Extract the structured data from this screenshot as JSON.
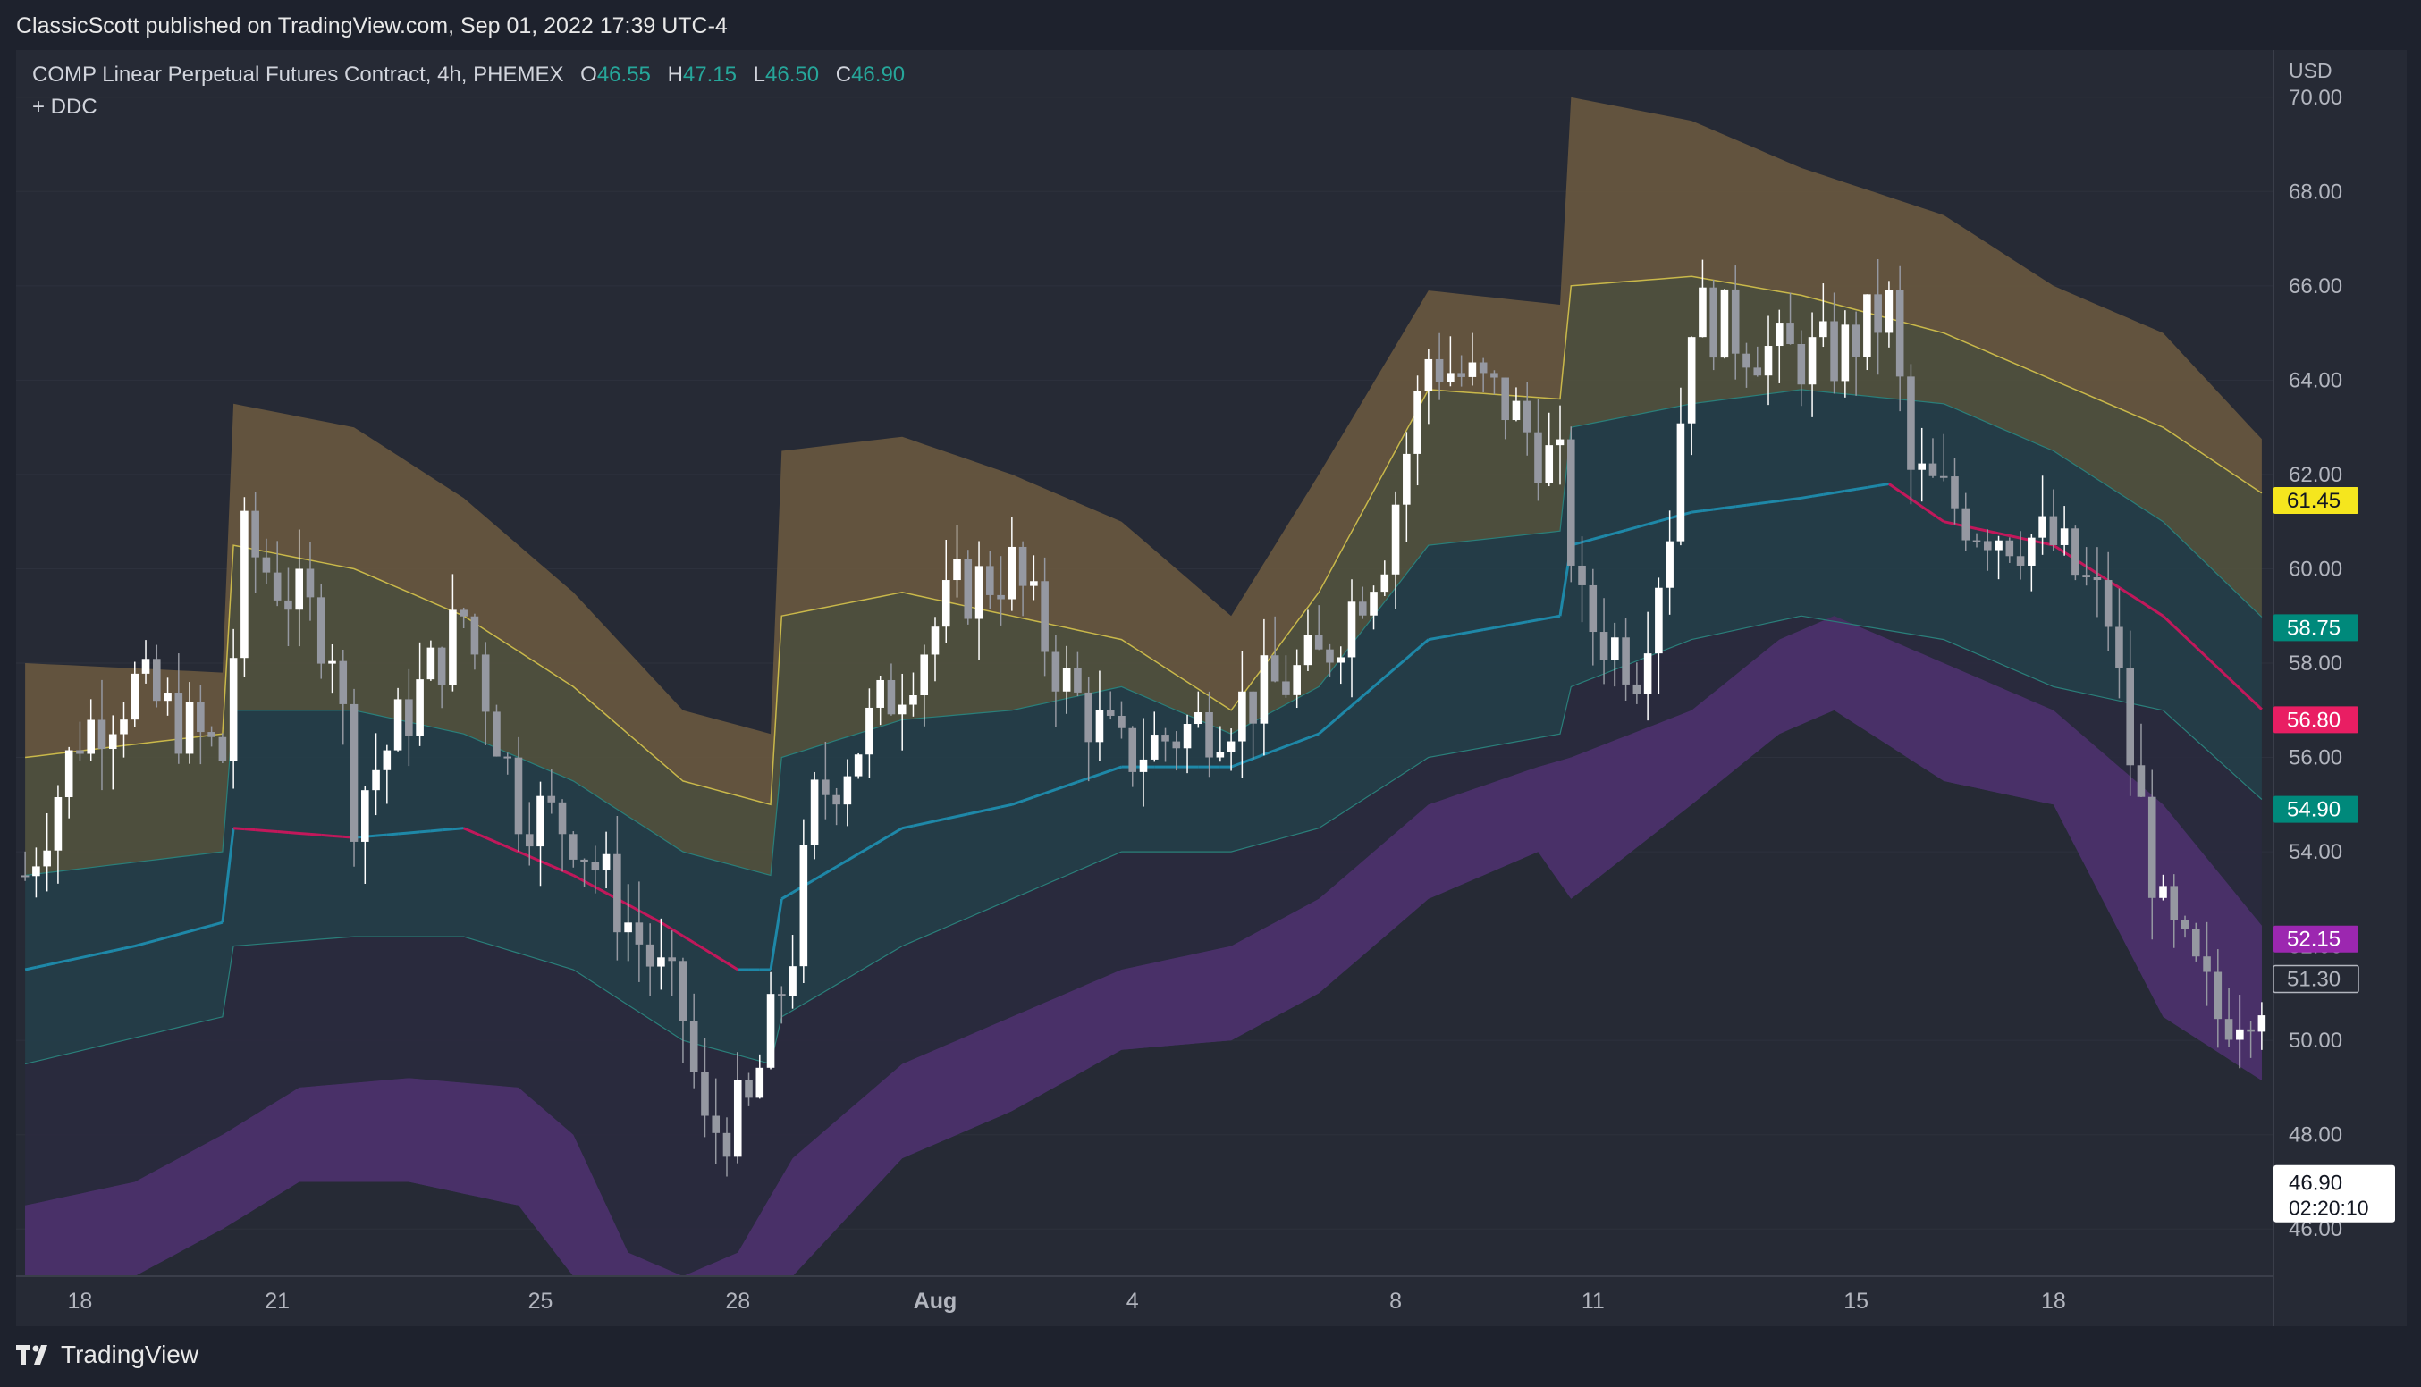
{
  "header": {
    "publisher": "ClassicScott published on TradingView.com, Sep 01, 2022 17:39 UTC-4"
  },
  "legend": {
    "symbol": "COMP Linear Perpetual Futures Contract, 4h, PHEMEX",
    "open_label": "O",
    "open": "46.55",
    "high_label": "H",
    "high": "47.15",
    "low_label": "L",
    "low": "46.50",
    "close_label": "C",
    "close": "46.90",
    "indicator": "+ DDC"
  },
  "footer": {
    "brand": "TradingView"
  },
  "chart_data": {
    "type": "candlestick",
    "currency": "USD",
    "ylim": [
      45.0,
      71.0
    ],
    "y_ticks": [
      "70.00",
      "68.00",
      "66.00",
      "64.00",
      "62.00",
      "60.00",
      "58.00",
      "56.00",
      "54.00",
      "52.00",
      "50.00",
      "48.00",
      "46.00"
    ],
    "x_ticks": [
      {
        "label": "18",
        "i": 5
      },
      {
        "label": "21",
        "i": 23
      },
      {
        "label": "25",
        "i": 47
      },
      {
        "label": "28",
        "i": 65
      },
      {
        "label": "Aug",
        "i": 83
      },
      {
        "label": "4",
        "i": 101
      },
      {
        "label": "8",
        "i": 125
      },
      {
        "label": "11",
        "i": 143
      },
      {
        "label": "15",
        "i": 167
      },
      {
        "label": "18",
        "i": 185
      }
    ],
    "n_bars": 205,
    "bands": {
      "upper_outer": [
        [
          0,
          58.0
        ],
        [
          18,
          57.8
        ],
        [
          19,
          63.5
        ],
        [
          30,
          63.0
        ],
        [
          40,
          61.5
        ],
        [
          50,
          59.5
        ],
        [
          60,
          57.0
        ],
        [
          68,
          56.5
        ],
        [
          69,
          62.5
        ],
        [
          80,
          62.8
        ],
        [
          90,
          62.0
        ],
        [
          100,
          61.0
        ],
        [
          110,
          59.0
        ],
        [
          118,
          62.0
        ],
        [
          128,
          65.9
        ],
        [
          140,
          65.6
        ],
        [
          141,
          70.0
        ],
        [
          152,
          69.5
        ],
        [
          162,
          68.5
        ],
        [
          175,
          67.5
        ],
        [
          185,
          66.0
        ],
        [
          195,
          65.0
        ],
        [
          205,
          62.5
        ]
      ],
      "upper_inner": [
        [
          0,
          56.0
        ],
        [
          18,
          56.5
        ],
        [
          19,
          60.5
        ],
        [
          30,
          60.0
        ],
        [
          40,
          59.0
        ],
        [
          50,
          57.5
        ],
        [
          60,
          55.5
        ],
        [
          68,
          55.0
        ],
        [
          69,
          59.0
        ],
        [
          80,
          59.5
        ],
        [
          90,
          59.0
        ],
        [
          100,
          58.5
        ],
        [
          110,
          57.0
        ],
        [
          118,
          59.5
        ],
        [
          128,
          63.8
        ],
        [
          140,
          63.6
        ],
        [
          141,
          66.0
        ],
        [
          152,
          66.2
        ],
        [
          162,
          65.8
        ],
        [
          175,
          65.0
        ],
        [
          185,
          64.0
        ],
        [
          195,
          63.0
        ],
        [
          205,
          61.45
        ]
      ],
      "mid_upper": [
        [
          0,
          53.5
        ],
        [
          18,
          54.0
        ],
        [
          19,
          57.0
        ],
        [
          30,
          57.0
        ],
        [
          40,
          56.5
        ],
        [
          50,
          55.5
        ],
        [
          60,
          54.0
        ],
        [
          68,
          53.5
        ],
        [
          69,
          56.0
        ],
        [
          80,
          56.8
        ],
        [
          90,
          57.0
        ],
        [
          100,
          57.5
        ],
        [
          110,
          56.5
        ],
        [
          118,
          57.5
        ],
        [
          128,
          60.5
        ],
        [
          140,
          60.8
        ],
        [
          141,
          63.0
        ],
        [
          152,
          63.5
        ],
        [
          162,
          63.8
        ],
        [
          175,
          63.5
        ],
        [
          185,
          62.5
        ],
        [
          195,
          61.0
        ],
        [
          205,
          58.75
        ]
      ],
      "mid": [
        [
          0,
          51.5
        ],
        [
          10,
          52.0
        ],
        [
          18,
          52.5
        ],
        [
          19,
          54.5
        ],
        [
          30,
          54.3
        ],
        [
          40,
          54.5
        ],
        [
          50,
          53.5
        ],
        [
          58,
          52.5
        ],
        [
          65,
          51.5
        ],
        [
          68,
          51.5
        ],
        [
          69,
          53.0
        ],
        [
          80,
          54.5
        ],
        [
          90,
          55.0
        ],
        [
          100,
          55.8
        ],
        [
          110,
          55.8
        ],
        [
          118,
          56.5
        ],
        [
          128,
          58.5
        ],
        [
          140,
          59.0
        ],
        [
          141,
          60.5
        ],
        [
          152,
          61.2
        ],
        [
          162,
          61.5
        ],
        [
          170,
          61.8
        ],
        [
          175,
          61.0
        ],
        [
          185,
          60.5
        ],
        [
          195,
          59.0
        ],
        [
          205,
          56.8
        ]
      ],
      "mid_lower": [
        [
          0,
          49.5
        ],
        [
          18,
          50.5
        ],
        [
          19,
          52.0
        ],
        [
          30,
          52.2
        ],
        [
          40,
          52.2
        ],
        [
          50,
          51.5
        ],
        [
          60,
          50.0
        ],
        [
          68,
          49.5
        ],
        [
          69,
          50.5
        ],
        [
          80,
          52.0
        ],
        [
          90,
          53.0
        ],
        [
          100,
          54.0
        ],
        [
          110,
          54.0
        ],
        [
          118,
          54.5
        ],
        [
          128,
          56.0
        ],
        [
          140,
          56.5
        ],
        [
          141,
          57.5
        ],
        [
          152,
          58.5
        ],
        [
          162,
          59.0
        ],
        [
          175,
          58.5
        ],
        [
          185,
          57.5
        ],
        [
          195,
          57.0
        ],
        [
          205,
          54.9
        ]
      ],
      "lower_inner": [
        [
          0,
          46.5
        ],
        [
          10,
          47.0
        ],
        [
          18,
          48.0
        ],
        [
          25,
          49.0
        ],
        [
          35,
          49.2
        ],
        [
          45,
          49.0
        ],
        [
          50,
          48.0
        ],
        [
          55,
          45.5
        ],
        [
          60,
          45.0
        ],
        [
          65,
          45.5
        ],
        [
          70,
          47.5
        ],
        [
          80,
          49.5
        ],
        [
          90,
          50.5
        ],
        [
          100,
          51.5
        ],
        [
          110,
          52.0
        ],
        [
          118,
          53.0
        ],
        [
          128,
          55.0
        ],
        [
          138,
          55.8
        ],
        [
          141,
          56.0
        ],
        [
          152,
          57.0
        ],
        [
          160,
          58.5
        ],
        [
          165,
          59.0
        ],
        [
          175,
          58.0
        ],
        [
          185,
          57.0
        ],
        [
          195,
          55.0
        ],
        [
          205,
          52.15
        ]
      ],
      "lower_outer": [
        [
          0,
          44.5
        ],
        [
          10,
          45.0
        ],
        [
          18,
          46.0
        ],
        [
          25,
          47.0
        ],
        [
          35,
          47.0
        ],
        [
          45,
          46.5
        ],
        [
          50,
          45.0
        ],
        [
          55,
          43.0
        ],
        [
          60,
          43.0
        ],
        [
          65,
          43.5
        ],
        [
          70,
          45.0
        ],
        [
          80,
          47.5
        ],
        [
          90,
          48.5
        ],
        [
          100,
          49.8
        ],
        [
          110,
          50.0
        ],
        [
          118,
          51.0
        ],
        [
          128,
          53.0
        ],
        [
          138,
          54.0
        ],
        [
          141,
          53.0
        ],
        [
          152,
          55.0
        ],
        [
          160,
          56.5
        ],
        [
          165,
          57.0
        ],
        [
          175,
          55.5
        ],
        [
          185,
          55.0
        ],
        [
          195,
          50.5
        ],
        [
          205,
          49.0
        ]
      ]
    },
    "price_labels": [
      {
        "value": "61.45",
        "price": 61.45,
        "bg": "#f5e61e",
        "fg": "#131722"
      },
      {
        "value": "58.75",
        "price": 58.75,
        "bg": "#00897b",
        "fg": "#ffffff"
      },
      {
        "value": "56.80",
        "price": 56.8,
        "bg": "#e91e63",
        "fg": "#ffffff"
      },
      {
        "value": "54.90",
        "price": 54.9,
        "bg": "#00897b",
        "fg": "#ffffff"
      },
      {
        "value": "52.15",
        "price": 52.15,
        "bg": "#9c27b0",
        "fg": "#ffffff"
      },
      {
        "value": "51.30",
        "price": 51.3,
        "bg": "#262a35",
        "fg": "#b2b5be"
      }
    ],
    "last_price": {
      "value": "46.90",
      "countdown": "02:20:10",
      "price": 46.9
    },
    "colors": {
      "up_candle": "#ffffff",
      "down_candle": "#9598a1",
      "upper_fill": "#6d5a3f",
      "upper_inner_fill": "#55553e",
      "mid_fill": "#24404a",
      "lower_fill": "#4a2f66",
      "lower_outer_fill": "#4a3a80",
      "mid_line_up": "#1e88a8",
      "mid_line_down": "#c2185b",
      "edge_line": "#c9b84a"
    }
  }
}
